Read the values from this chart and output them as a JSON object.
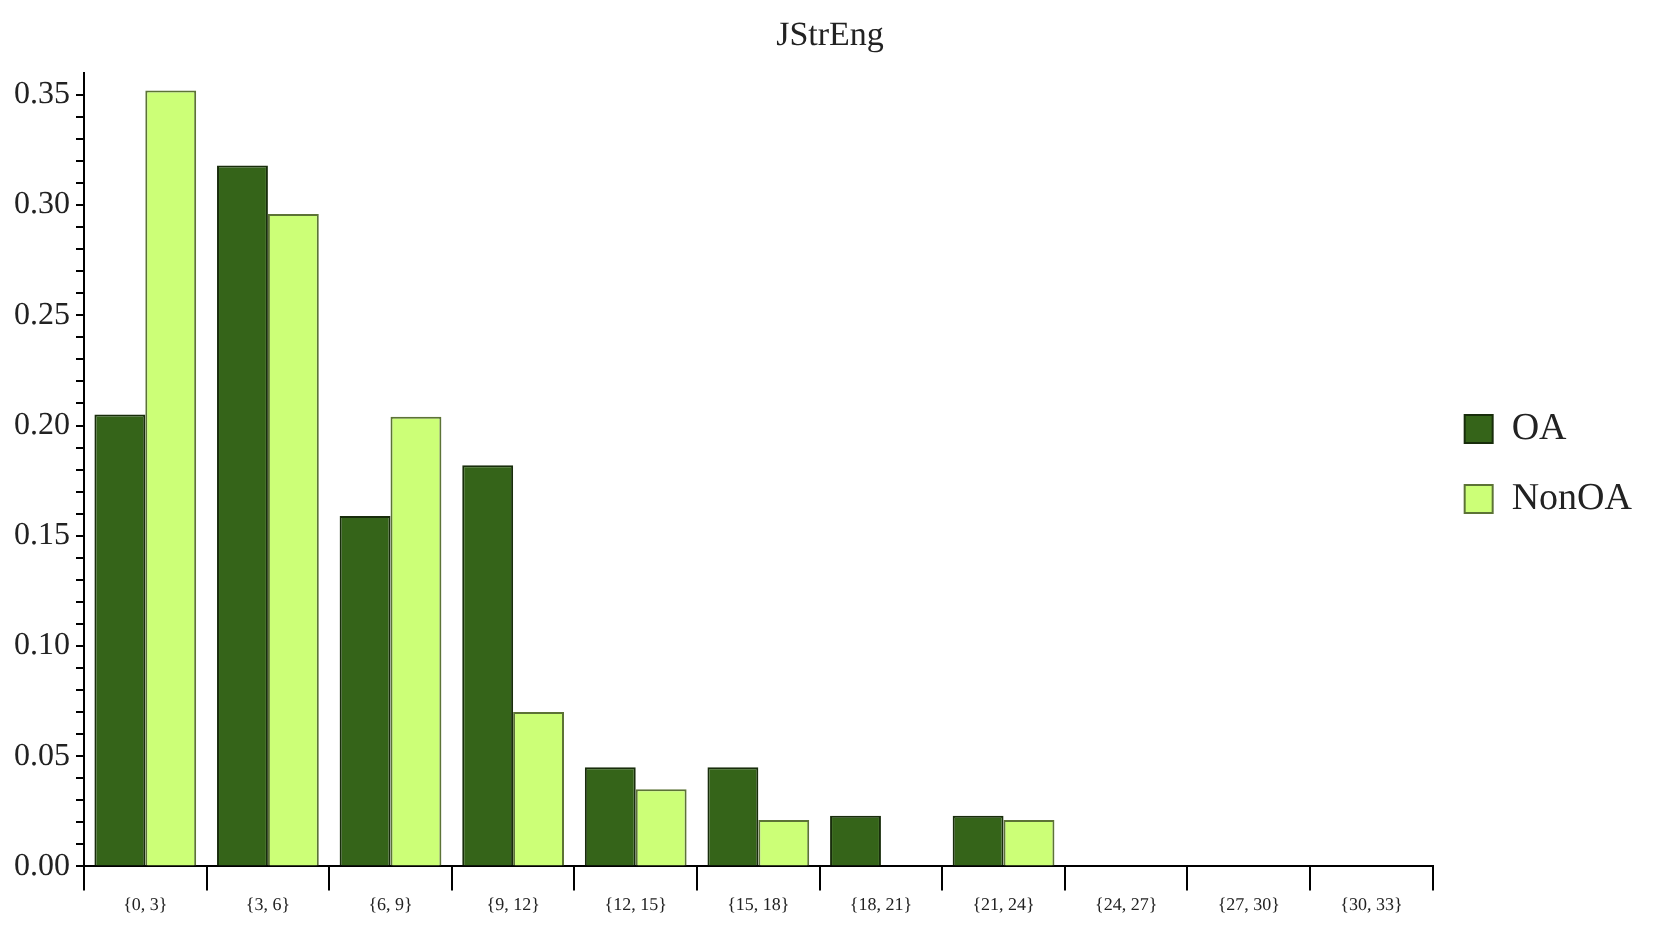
{
  "chart_data": {
    "type": "bar",
    "title": "JStrEng",
    "categories": [
      "{0, 3}",
      "{3, 6}",
      "{6, 9}",
      "{9, 12}",
      "{12, 15}",
      "{15, 18}",
      "{18, 21}",
      "{21, 24}",
      "{24, 27}",
      "{27, 30}",
      "{30, 33}"
    ],
    "series": [
      {
        "name": "OA",
        "color": "#356419",
        "values": [
          0.205,
          0.318,
          0.159,
          0.182,
          0.045,
          0.045,
          0.023,
          0.023,
          0,
          0,
          0
        ]
      },
      {
        "name": "NonOA",
        "color": "#ccff77",
        "values": [
          0.352,
          0.296,
          0.204,
          0.07,
          0.035,
          0.021,
          0,
          0.021,
          0,
          0,
          0
        ]
      }
    ],
    "ylim": [
      0,
      0.36
    ],
    "yticks": [
      {
        "value": 0,
        "label": "0.00"
      },
      {
        "value": 0.01,
        "label": null
      },
      {
        "value": 0.02,
        "label": null
      },
      {
        "value": 0.03,
        "label": null
      },
      {
        "value": 0.04,
        "label": null
      },
      {
        "value": 0.05,
        "label": "0.05"
      },
      {
        "value": 0.06,
        "label": null
      },
      {
        "value": 0.07,
        "label": null
      },
      {
        "value": 0.08,
        "label": null
      },
      {
        "value": 0.09,
        "label": null
      },
      {
        "value": 0.1,
        "label": "0.10"
      },
      {
        "value": 0.11,
        "label": null
      },
      {
        "value": 0.12,
        "label": null
      },
      {
        "value": 0.13,
        "label": null
      },
      {
        "value": 0.14,
        "label": null
      },
      {
        "value": 0.15,
        "label": "0.15"
      },
      {
        "value": 0.16,
        "label": null
      },
      {
        "value": 0.17,
        "label": null
      },
      {
        "value": 0.18,
        "label": null
      },
      {
        "value": 0.19,
        "label": null
      },
      {
        "value": 0.2,
        "label": "0.20"
      },
      {
        "value": 0.21,
        "label": null
      },
      {
        "value": 0.22,
        "label": null
      },
      {
        "value": 0.23,
        "label": null
      },
      {
        "value": 0.24,
        "label": null
      },
      {
        "value": 0.25,
        "label": "0.25"
      },
      {
        "value": 0.26,
        "label": null
      },
      {
        "value": 0.27,
        "label": null
      },
      {
        "value": 0.28,
        "label": null
      },
      {
        "value": 0.29,
        "label": null
      },
      {
        "value": 0.3,
        "label": "0.30"
      },
      {
        "value": 0.31,
        "label": null
      },
      {
        "value": 0.32,
        "label": null
      },
      {
        "value": 0.33,
        "label": null
      },
      {
        "value": 0.34,
        "label": null
      },
      {
        "value": 0.35,
        "label": "0.35"
      }
    ],
    "grid": false,
    "legend": "right"
  }
}
